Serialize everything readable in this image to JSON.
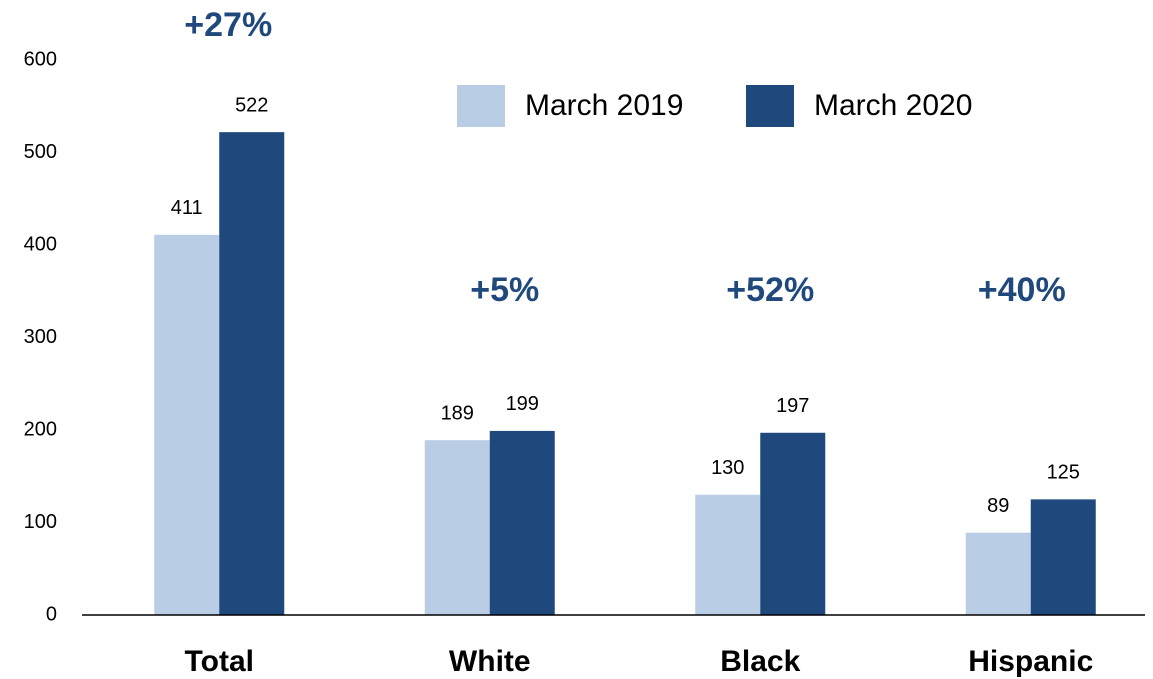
{
  "chart_data": {
    "type": "bar",
    "categories": [
      "Total",
      "White",
      "Black",
      "Hispanic"
    ],
    "series": [
      {
        "name": "March 2019",
        "color": "#b9cde5",
        "values": [
          411,
          189,
          130,
          89
        ]
      },
      {
        "name": "March 2020",
        "color": "#1f497d",
        "values": [
          522,
          199,
          197,
          125
        ]
      }
    ],
    "annotations": [
      "+27%",
      "+5%",
      "+52%",
      "+40%"
    ],
    "annotation_color": "#1f497d",
    "ylim": [
      0,
      600
    ],
    "yticks": [
      0,
      100,
      200,
      300,
      400,
      500,
      600
    ],
    "grid": false
  }
}
